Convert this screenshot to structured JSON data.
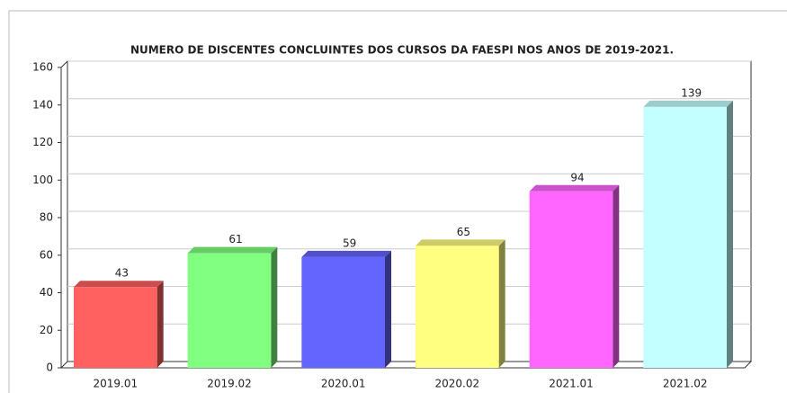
{
  "chart_data": {
    "type": "bar",
    "title": "NUMERO DE DISCENTES CONCLUINTES DOS CURSOS DA FAESPI NOS ANOS DE 2019-2021.",
    "categories": [
      "2019.01",
      "2019.02",
      "2020.01",
      "2020.02",
      "2021.01",
      "2021.02"
    ],
    "values": [
      43,
      61,
      59,
      65,
      94,
      139
    ],
    "colors": [
      "#ff6060",
      "#80ff80",
      "#6464ff",
      "#ffff80",
      "#ff66ff",
      "#c4ffff"
    ],
    "ylim": [
      0,
      160
    ],
    "yticks": [
      0,
      20,
      40,
      60,
      80,
      100,
      120,
      140,
      160
    ],
    "grid": true
  }
}
